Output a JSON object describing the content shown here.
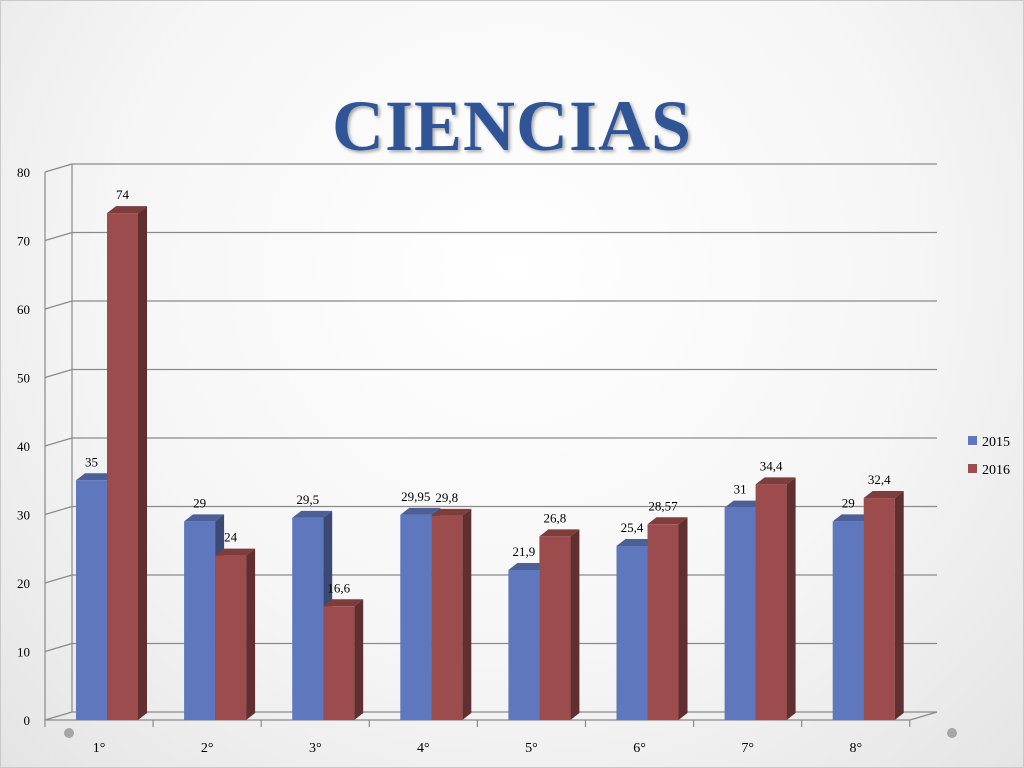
{
  "slide": {
    "title": "CIENCIAS"
  },
  "chart_data": {
    "type": "bar",
    "title": "",
    "xlabel": "",
    "ylabel": "",
    "ylim": [
      0,
      80
    ],
    "yticks": [
      "0",
      "10",
      "20",
      "30",
      "40",
      "50",
      "60",
      "70",
      "80"
    ],
    "grid": true,
    "legend_position": "right",
    "categories": [
      "1°",
      "2°",
      "3°",
      "4°",
      "5°",
      "6°",
      "7°",
      "8°"
    ],
    "series": [
      {
        "name": "2015",
        "color": "#5f77bd",
        "values": [
          35,
          29,
          29.5,
          29.95,
          21.9,
          25.4,
          31,
          29
        ],
        "labels": [
          "35",
          "29",
          "29,5",
          "29,95",
          "21,9",
          "25,4",
          "31",
          "29"
        ]
      },
      {
        "name": "2016",
        "color": "#9c4c4c",
        "values": [
          74,
          24,
          16.6,
          29.8,
          26.8,
          28.57,
          34.4,
          32.4
        ],
        "labels": [
          "74",
          "24",
          "16,6",
          "29,8",
          "26,8",
          "28,57",
          "34,4",
          "32,4"
        ]
      }
    ]
  }
}
